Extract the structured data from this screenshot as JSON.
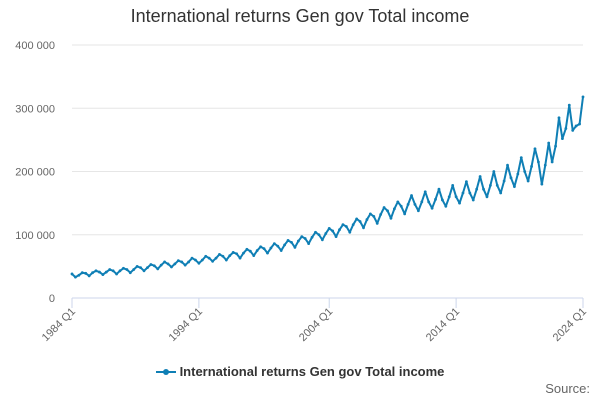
{
  "title": "International returns Gen gov Total income",
  "source_label": "Source:",
  "legend": {
    "label": "International returns Gen gov Total income"
  },
  "colors": {
    "series": "#0f7fb5",
    "grid": "#e6e6e6",
    "axis": "#ccd6eb",
    "text": "#666666"
  },
  "chart_data": {
    "type": "line",
    "title": "International returns Gen gov Total income",
    "xlabel": "",
    "ylabel": "",
    "x_start": "1984 Q1",
    "x_end": "2024 Q1",
    "x_ticks": [
      "1984 Q1",
      "1994 Q1",
      "2004 Q1",
      "2014 Q1",
      "2024 Q1"
    ],
    "y_ticks": [
      0,
      100000,
      200000,
      300000,
      400000
    ],
    "y_tick_labels": [
      "0",
      "100 000",
      "200 000",
      "300 000",
      "400 000"
    ],
    "ylim": [
      0,
      400000
    ],
    "grid": true,
    "legend_position": "bottom-center",
    "series": [
      {
        "name": "International returns Gen gov Total income",
        "values": [
          38000,
          33000,
          36000,
          40000,
          39000,
          35000,
          40000,
          43000,
          41000,
          37000,
          41000,
          45000,
          43000,
          38000,
          43000,
          47000,
          45000,
          40000,
          45000,
          50000,
          48000,
          43000,
          48000,
          53000,
          51000,
          46000,
          52000,
          57000,
          54000,
          49000,
          54000,
          59000,
          57000,
          52000,
          57000,
          63000,
          60000,
          55000,
          60000,
          66000,
          63000,
          58000,
          63000,
          69000,
          66000,
          60000,
          67000,
          72000,
          70000,
          63000,
          71000,
          77000,
          74000,
          67000,
          75000,
          81000,
          78000,
          71000,
          79000,
          86000,
          82000,
          75000,
          84000,
          91000,
          88000,
          80000,
          90000,
          97000,
          94000,
          86000,
          96000,
          104000,
          100000,
          92000,
          102000,
          110000,
          106000,
          97000,
          108000,
          116000,
          113000,
          104000,
          116000,
          125000,
          121000,
          111000,
          124000,
          133000,
          129000,
          118000,
          132000,
          143000,
          138000,
          126000,
          141000,
          152000,
          145000,
          133000,
          148000,
          162000,
          148000,
          138000,
          152000,
          168000,
          152000,
          142000,
          156000,
          172000,
          155000,
          145000,
          160000,
          178000,
          160000,
          150000,
          166000,
          184000,
          166000,
          155000,
          172000,
          192000,
          172000,
          160000,
          178000,
          200000,
          178000,
          166000,
          185000,
          210000,
          190000,
          176000,
          196000,
          222000,
          200000,
          185000,
          208000,
          236000,
          215000,
          180000,
          210000,
          245000,
          215000,
          240000,
          285000,
          252000,
          268000,
          305000,
          265000,
          272000,
          275000,
          318000
        ]
      }
    ]
  }
}
